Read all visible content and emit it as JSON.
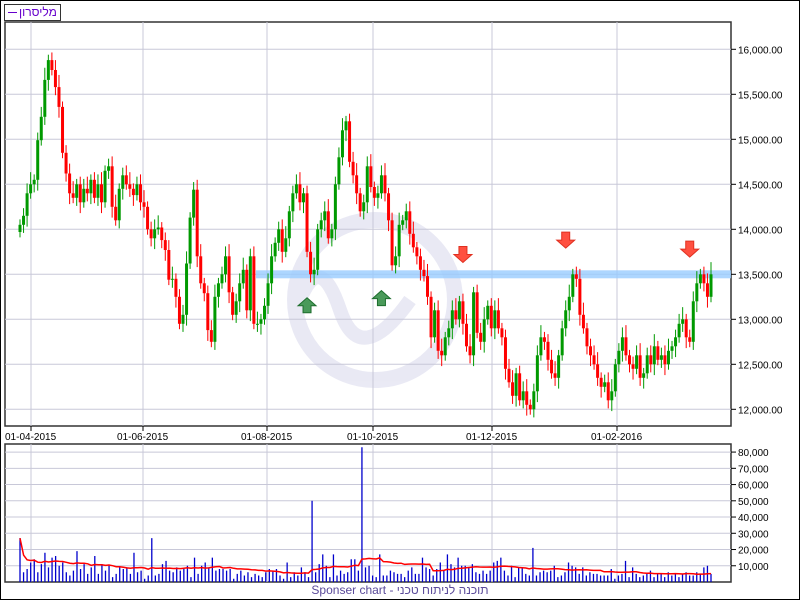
{
  "legend": {
    "series_name": "מליסרון",
    "color": "#6600cc"
  },
  "footer": {
    "text": "Sponser chart - תוכנה לניתוח טכני"
  },
  "colors": {
    "up": "#009900",
    "down": "#ff0000",
    "volume": "#0000cc",
    "volume_ma": "#ff0000",
    "support_band": "#99ccff",
    "grid": "#c8c8d8"
  },
  "chart_data": [
    {
      "type": "candlestick",
      "title": "",
      "x_tick_labels": [
        "01-04-2015",
        "01-06-2015",
        "01-08-2015",
        "01-10-2015",
        "01-12-2015",
        "01-02-2016"
      ],
      "y_tick_labels": [
        "16,000.00",
        "15,500.00",
        "15,000.00",
        "14,500.00",
        "14,000.00",
        "13,500.00",
        "13,000.00",
        "12,500.00",
        "12,000.00"
      ],
      "y_ticks": [
        16000,
        15500,
        15000,
        14500,
        14000,
        13500,
        13000,
        12500,
        12000
      ],
      "ylim": [
        11850,
        16400
      ],
      "grid": true,
      "closes": [
        14050,
        14150,
        14400,
        14500,
        14550,
        14990,
        15250,
        15660,
        15880,
        15770,
        15580,
        15360,
        14850,
        14620,
        14400,
        14350,
        14500,
        14300,
        14450,
        14400,
        14550,
        14350,
        14500,
        14300,
        14650,
        14700,
        14250,
        14100,
        14450,
        14600,
        14500,
        14450,
        14380,
        14500,
        14300,
        14250,
        14000,
        13900,
        14000,
        14020,
        13880,
        13770,
        13440,
        13450,
        13250,
        12950,
        13050,
        13620,
        14130,
        14440,
        13700,
        13400,
        13290,
        12880,
        12750,
        13250,
        13400,
        13500,
        13700,
        13300,
        13050,
        13200,
        13400,
        13550,
        13100,
        13700,
        12950,
        12950,
        13000,
        13150,
        13400,
        13700,
        13850,
        14000,
        13750,
        13900,
        14200,
        14400,
        14500,
        14300,
        14400,
        13750,
        13500,
        13550,
        14000,
        14100,
        14200,
        13900,
        14000,
        14500,
        14800,
        15100,
        15200,
        14750,
        14600,
        14400,
        14200,
        14300,
        14700,
        14470,
        14350,
        14400,
        14600,
        14400,
        14100,
        13600,
        13700,
        14050,
        14100,
        14200,
        13950,
        13800,
        13700,
        13550,
        13480,
        13250,
        12800,
        13100,
        12650,
        12600,
        12800,
        12900,
        13100,
        13000,
        13200,
        12950,
        12700,
        12600,
        13300,
        12850,
        12750,
        13000,
        13150,
        12900,
        13100,
        12900,
        12800,
        12450,
        12300,
        12150,
        12400,
        12100,
        12200,
        12050,
        12000,
        12200,
        12600,
        12800,
        12750,
        12550,
        12400,
        12350,
        12600,
        12900,
        13100,
        13250,
        13500,
        13450,
        13050,
        12900,
        12700,
        12600,
        12500,
        12350,
        12250,
        12300,
        12100,
        12200,
        12500,
        12650,
        12800,
        12600,
        12500,
        12450,
        12600,
        12350,
        12400,
        12600,
        12500,
        12700,
        12550,
        12600,
        12500,
        12650,
        12700,
        12800,
        12950,
        13000,
        12800,
        12750,
        13200,
        13400,
        13500,
        13400,
        13250,
        13500
      ],
      "support_level": 13500,
      "signals": [
        {
          "type": "buy",
          "index": 81,
          "price": 13150
        },
        {
          "type": "buy",
          "index": 102,
          "price": 13230
        },
        {
          "type": "sell",
          "index": 125,
          "price": 13720
        },
        {
          "type": "sell",
          "index": 154,
          "price": 13880
        },
        {
          "type": "sell",
          "index": 189,
          "price": 13780
        }
      ]
    },
    {
      "type": "bar",
      "title": "",
      "y_tick_labels": [
        "80,000",
        "70,000",
        "60,000",
        "50,000",
        "40,000",
        "30,000",
        "20,000",
        "10,000"
      ],
      "y_ticks": [
        80000,
        70000,
        60000,
        50000,
        40000,
        30000,
        20000,
        10000
      ],
      "ylim": [
        0,
        84000
      ],
      "grid": true,
      "values": [
        27000,
        6000,
        8000,
        12000,
        14000,
        6000,
        11000,
        18000,
        9000,
        15000,
        16000,
        10000,
        12000,
        6000,
        4000,
        7000,
        19000,
        8000,
        11000,
        5000,
        9000,
        16000,
        5000,
        11000,
        7000,
        10000,
        3000,
        5000,
        9000,
        8000,
        9000,
        5000,
        18000,
        6000,
        7000,
        2000,
        4000,
        27000,
        4000,
        5000,
        11000,
        13000,
        7000,
        6000,
        9000,
        7000,
        8000,
        10000,
        3000,
        15000,
        5000,
        10000,
        12000,
        9000,
        15000,
        7000,
        8000,
        8000,
        7000,
        8000,
        2000,
        5000,
        7000,
        4000,
        6000,
        3000,
        5000,
        4000,
        3000,
        6000,
        8000,
        7000,
        8000,
        4000,
        2000,
        12000,
        3000,
        6000,
        4000,
        9000,
        6000,
        3000,
        50000,
        6000,
        11000,
        17000,
        10000,
        3000,
        17000,
        4000,
        7000,
        5000,
        6000,
        14000,
        14000,
        7000,
        83000,
        9000,
        10000,
        4000,
        3000,
        17000,
        4000,
        4000,
        7000,
        6000,
        5000,
        5000,
        3000,
        7000,
        9000,
        5000,
        5000,
        15000,
        9000,
        8000,
        4000,
        8000,
        12000,
        7000,
        17000,
        11000,
        9000,
        15000,
        10000,
        10000,
        9000,
        11000,
        6000,
        5000,
        7000,
        5000,
        7000,
        12000,
        13000,
        15000,
        7000,
        4000,
        10000,
        3000,
        9000,
        9000,
        5000,
        4000,
        21000,
        4000,
        6000,
        7000,
        6000,
        7000,
        10000,
        3000,
        4000,
        6000,
        12000,
        10000,
        9000,
        5000,
        9000,
        4000,
        6000,
        5000,
        5000,
        4000,
        4000,
        4000,
        8000,
        2000,
        4000,
        5000,
        13000,
        3000,
        9000,
        5000,
        3000,
        4000,
        5000,
        7000,
        3000,
        5000,
        5000,
        3000,
        6000,
        4000,
        5000,
        3000,
        5000,
        6000,
        4000,
        4000,
        6000,
        5000,
        9000,
        10000,
        5000
      ]
    }
  ]
}
